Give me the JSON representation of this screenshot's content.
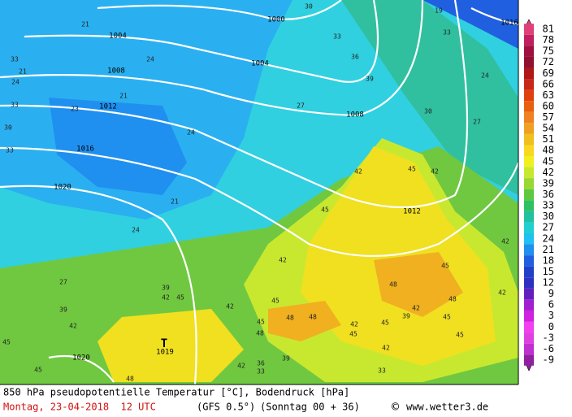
{
  "map": {
    "isobar_labels": [
      "1000",
      "1004",
      "1004",
      "1008",
      "1008",
      "1012",
      "1012",
      "1016",
      "1016",
      "1020",
      "1020",
      "1019",
      "T"
    ],
    "contour_labels": [
      30,
      33,
      36,
      39,
      30,
      27,
      24,
      19,
      33,
      21,
      24,
      21,
      24,
      21,
      24,
      27,
      39,
      42,
      45,
      48,
      45,
      42,
      45,
      42,
      45,
      42,
      45,
      48,
      48,
      39,
      42,
      45,
      42,
      45,
      45,
      39,
      42,
      45,
      42,
      45,
      48,
      48,
      45,
      48,
      42,
      36,
      33,
      39,
      42,
      33,
      45,
      42,
      42,
      33,
      21,
      24,
      33,
      23,
      30,
      33,
      27
    ]
  },
  "colorbar": {
    "ticks": [
      81,
      78,
      75,
      72,
      69,
      66,
      63,
      60,
      57,
      54,
      51,
      48,
      45,
      42,
      39,
      36,
      33,
      30,
      27,
      24,
      21,
      18,
      15,
      12,
      9,
      6,
      3,
      0,
      -3,
      -6,
      -9
    ],
    "colors": [
      "#e0407a",
      "#c02060",
      "#a01040",
      "#901030",
      "#b01818",
      "#c82818",
      "#e04010",
      "#e86010",
      "#f08020",
      "#f0a020",
      "#f0c020",
      "#f8d820",
      "#f0f020",
      "#c8e830",
      "#98d830",
      "#60c840",
      "#30c060",
      "#20c0a0",
      "#20d0d0",
      "#20c0f0",
      "#2090f0",
      "#2060e0",
      "#2040c8",
      "#3030c0",
      "#6020c0",
      "#a020d0",
      "#d020e0",
      "#f040f0",
      "#e040e0",
      "#c030d0",
      "#9020a0"
    ]
  },
  "footer": {
    "title": "850 hPa pseudopotentielle Temperatur [°C], Bodendruck [hPa]",
    "date": "Montag, 23-04-2018  12 UTC",
    "model": "(GFS 0.5°)",
    "run": "(Sonntag 00 + 36)",
    "copyright": "©",
    "site": "www.wetter3.de"
  }
}
